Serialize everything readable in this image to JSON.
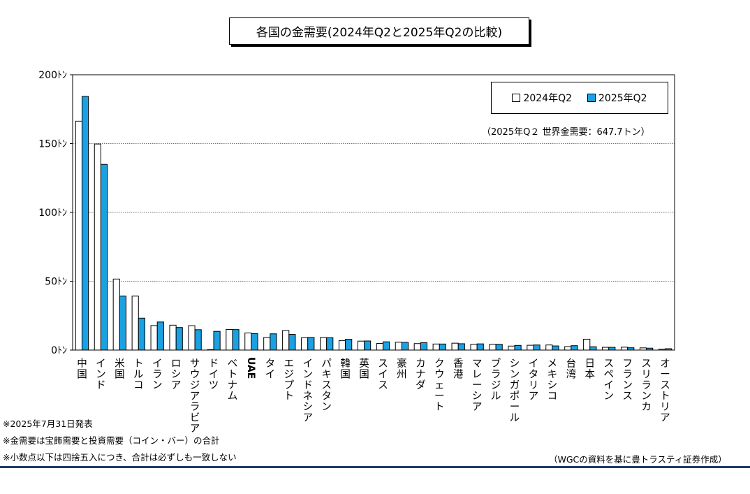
{
  "title": "各国の金需要(2024年Q2と2025年Q2の比較)",
  "legend": {
    "series1_label": "2024年Q2",
    "series2_label": "2025年Q2"
  },
  "note_total": "（2025年Q２ 世界金需要：647.7トン）",
  "footnotes": [
    "※2025年7月31日発表",
    "※金需要は宝飾需要と投資需要（コイン・バー）の合計",
    "※小数点以下は四捨五入につき、合計は必ずしも一致しない"
  ],
  "source": "（WGCの資料を基に豊トラスティ証券作成）",
  "colors": {
    "series1": "#ffffff",
    "series2": "#1ba1e2",
    "bar_border": "#000000",
    "bottom_line": "#1f3a68"
  },
  "chart_data": {
    "type": "bar",
    "title": "各国の金需要(2024年Q2と2025年Q2の比較)",
    "categories": [
      "中国",
      "インド",
      "米国",
      "トルコ",
      "イラン",
      "ロシア",
      "サウジアラビア",
      "ドイツ",
      "ベトナム",
      "UAE",
      "タイ",
      "エジプト",
      "インドネシア",
      "パキスタン",
      "韓国",
      "英国",
      "スイス",
      "豪州",
      "カナダ",
      "クウェート",
      "香港",
      "マレーシア",
      "ブラジル",
      "シンガポール",
      "イタリア",
      "メキシコ",
      "台湾",
      "日本",
      "スペイン",
      "フランス",
      "スリランカ",
      "オーストリア"
    ],
    "series": [
      {
        "name": "2024年Q2",
        "values": [
          166.3,
          149.7,
          51.6,
          39.2,
          17.8,
          18.1,
          17.7,
          0.3,
          15.0,
          12.4,
          9.2,
          14.2,
          8.9,
          9.0,
          6.9,
          6.5,
          4.8,
          5.7,
          4.7,
          4.4,
          5.0,
          4.2,
          4.2,
          2.9,
          3.5,
          3.7,
          2.5,
          7.9,
          2.0,
          2.1,
          1.6,
          0.6
        ]
      },
      {
        "name": "2025年Q2",
        "values": [
          184.3,
          134.9,
          39.2,
          23.2,
          20.4,
          16.4,
          14.8,
          13.6,
          14.9,
          11.9,
          11.8,
          11.4,
          9.2,
          9.0,
          7.8,
          6.6,
          6.0,
          5.6,
          5.4,
          4.4,
          4.6,
          4.5,
          4.2,
          3.4,
          3.7,
          3.0,
          3.2,
          2.4,
          2.0,
          1.7,
          1.4,
          1.0
        ]
      }
    ],
    "ylim": [
      0,
      200
    ],
    "yticks": [
      0,
      50,
      100,
      150,
      200
    ],
    "ytick_labels": [
      "0ﾄﾝ",
      "50ﾄﾝ",
      "100ﾄﾝ",
      "150ﾄﾝ",
      "200ﾄﾝ"
    ],
    "grid": true,
    "legend_position": "top-right"
  }
}
